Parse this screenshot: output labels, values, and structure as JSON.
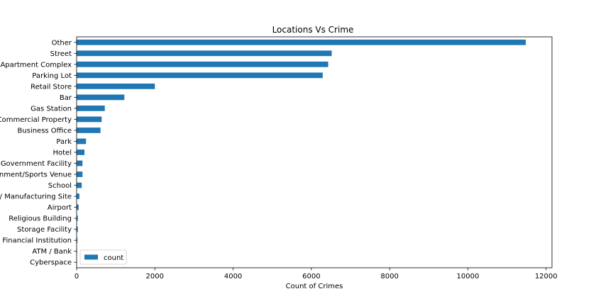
{
  "chart_data": {
    "type": "bar",
    "orientation": "horizontal",
    "title": "Locations Vs Crime",
    "xlabel": "Count of Crimes",
    "ylabel": "",
    "xlim": [
      0,
      12150
    ],
    "xticks": [
      0,
      2000,
      4000,
      6000,
      8000,
      10000,
      12000
    ],
    "grid": false,
    "legend_position": "lower-left",
    "series": [
      {
        "name": "count",
        "color": "#1f77b4",
        "values": [
          11480,
          6520,
          6430,
          6290,
          2000,
          1220,
          720,
          640,
          610,
          240,
          200,
          150,
          150,
          130,
          70,
          50,
          30,
          30,
          20,
          10,
          5
        ]
      }
    ],
    "categories": [
      "Other",
      "Street",
      "Apartment Complex",
      "Parking Lot",
      "Retail Store",
      "Bar",
      "Gas Station",
      "Commercial Property",
      "Business Office",
      "Park",
      "Hotel",
      "Government Facility",
      "Entertainment/Sports Venue",
      "School",
      "Industrial / Manufacturing Site",
      "Airport",
      "Religious Building",
      "Storage Facility",
      "Financial Institution",
      "ATM / Bank",
      "Cyberspace"
    ]
  }
}
